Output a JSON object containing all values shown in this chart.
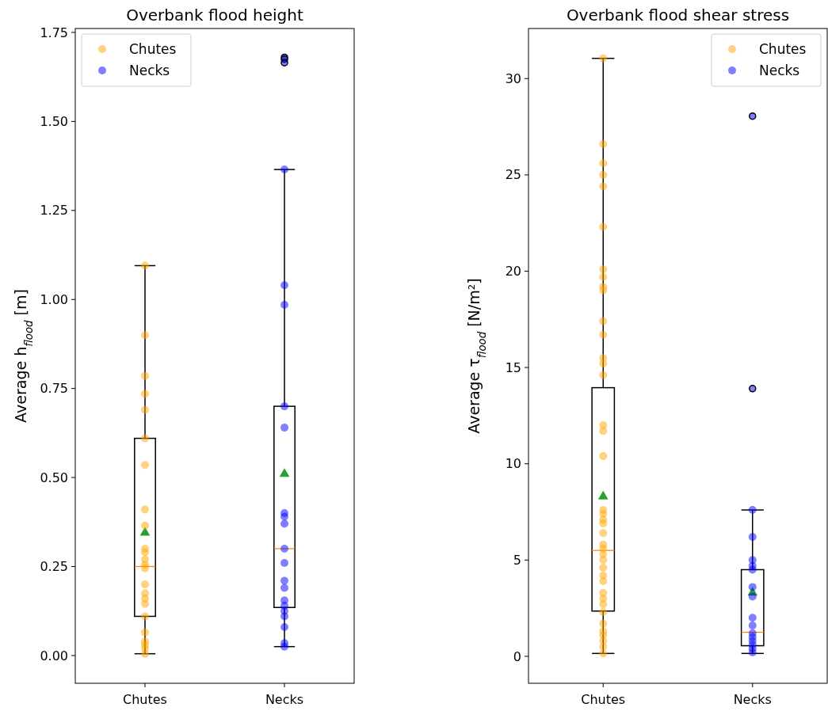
{
  "chart_data": [
    {
      "type": "box",
      "title": "Overbank flood height",
      "ylabel": "Average h$_{flood}$ [m]",
      "categories": [
        "Chutes",
        "Necks"
      ],
      "boxes": [
        {
          "low": 0.005,
          "q1": 0.11,
          "median": 0.25,
          "q3": 0.61,
          "high": 1.095,
          "mean": 0.345
        },
        {
          "low": 0.025,
          "q1": 0.135,
          "median": 0.3,
          "q3": 0.7,
          "high": 1.365,
          "mean": 0.51,
          "outliers": [
            1.68,
            1.675,
            1.665
          ]
        }
      ],
      "series": [
        {
          "type": "scatter",
          "name": "Chutes",
          "color": "#ffa500",
          "x": [
            "Chutes",
            "Chutes",
            "Chutes",
            "Chutes",
            "Chutes",
            "Chutes",
            "Chutes",
            "Chutes",
            "Chutes",
            "Chutes",
            "Chutes",
            "Chutes",
            "Chutes",
            "Chutes",
            "Chutes",
            "Chutes",
            "Chutes",
            "Chutes",
            "Chutes",
            "Chutes",
            "Chutes",
            "Chutes",
            "Chutes",
            "Chutes",
            "Chutes"
          ],
          "values": [
            1.095,
            0.9,
            0.785,
            0.735,
            0.69,
            0.61,
            0.535,
            0.41,
            0.365,
            0.3,
            0.29,
            0.27,
            0.255,
            0.245,
            0.2,
            0.175,
            0.16,
            0.145,
            0.11,
            0.065,
            0.04,
            0.03,
            0.02,
            null,
            0.005
          ]
        },
        {
          "type": "scatter",
          "name": "Necks",
          "color": "#0000ff",
          "x": [
            "Necks",
            "Necks",
            "Necks",
            "Necks",
            "Necks",
            "Necks",
            "Necks",
            "Necks",
            "Necks",
            "Necks",
            "Necks",
            "Necks",
            "Necks",
            "Necks",
            "Necks",
            "Necks",
            "Necks",
            "Necks",
            "Necks"
          ],
          "values": [
            1.365,
            1.04,
            0.985,
            0.7,
            0.64,
            0.4,
            0.39,
            0.37,
            0.3,
            0.26,
            0.21,
            0.19,
            0.155,
            0.14,
            0.125,
            0.11,
            0.08,
            0.035,
            0.025
          ]
        }
      ],
      "ylim": [
        -0.078,
        1.761
      ],
      "yticks": [
        {
          "value": 0,
          "label": "0.00"
        },
        {
          "value": 0.25,
          "label": "0.25"
        },
        {
          "value": 0.5,
          "label": "0.50"
        },
        {
          "value": 0.75,
          "label": "0.75"
        },
        {
          "value": 1,
          "label": "1.00"
        },
        {
          "value": 1.25,
          "label": "1.25"
        },
        {
          "value": 1.5,
          "label": "1.50"
        },
        {
          "value": 1.75,
          "label": "1.75"
        }
      ],
      "legend": "top left",
      "marker": "circle"
    },
    {
      "type": "box",
      "title": "Overbank flood shear stress",
      "ylabel": "Average τ$_{flood}$ [N/m²]",
      "categories": [
        "Chutes",
        "Necks"
      ],
      "boxes": [
        {
          "low": 0.15,
          "q1": 2.35,
          "median": 5.5,
          "q3": 13.95,
          "high": 31.05,
          "mean": 8.3
        },
        {
          "low": 0.15,
          "q1": 0.55,
          "median": 1.25,
          "q3": 4.5,
          "high": 7.6,
          "mean": 3.3,
          "outliers": [
            28.05,
            13.9
          ]
        }
      ],
      "series": [
        {
          "type": "scatter",
          "name": "Chutes",
          "color": "#ffa500",
          "x": [
            "Chutes",
            "Chutes",
            "Chutes",
            "Chutes",
            "Chutes",
            "Chutes",
            "Chutes",
            "Chutes",
            "Chutes",
            "Chutes",
            "Chutes",
            "Chutes",
            "Chutes",
            "Chutes",
            "Chutes",
            "Chutes",
            "Chutes",
            "Chutes",
            "Chutes",
            "Chutes",
            "Chutes",
            "Chutes",
            "Chutes",
            "Chutes",
            "Chutes",
            "Chutes",
            "Chutes",
            "Chutes",
            "Chutes",
            "Chutes",
            "Chutes",
            "Chutes",
            "Chutes",
            "Chutes",
            "Chutes",
            "Chutes",
            "Chutes",
            "Chutes",
            "Chutes",
            "Chutes"
          ],
          "values": [
            31.05,
            26.6,
            25.6,
            25.0,
            24.4,
            22.3,
            20.1,
            19.7,
            19.2,
            19.0,
            17.4,
            16.7,
            15.5,
            15.2,
            14.6,
            12.0,
            11.7,
            10.4,
            7.6,
            7.4,
            7.1,
            6.9,
            6.4,
            5.8,
            5.6,
            5.3,
            5.0,
            4.6,
            4.2,
            3.9,
            3.3,
            3.0,
            2.7,
            2.3,
            1.7,
            1.3,
            1.1,
            0.8,
            0.5,
            0.15
          ]
        },
        {
          "type": "scatter",
          "name": "Necks",
          "color": "#0000ff",
          "x": [
            "Necks",
            "Necks",
            "Necks",
            "Necks",
            "Necks",
            "Necks",
            "Necks",
            "Necks",
            "Necks",
            "Necks",
            "Necks",
            "Necks",
            "Necks",
            "Necks",
            "Necks",
            "Necks"
          ],
          "values": [
            7.6,
            6.2,
            5.0,
            4.7,
            4.5,
            3.6,
            3.1,
            2.0,
            null,
            1.6,
            1.2,
            1.0,
            0.8,
            0.6,
            0.4,
            0.2
          ]
        }
      ],
      "ylim": [
        -1.4,
        32.6
      ],
      "yticks": [
        0,
        5,
        10,
        15,
        20,
        25,
        30
      ],
      "legend": "top right",
      "marker": "circle"
    }
  ]
}
